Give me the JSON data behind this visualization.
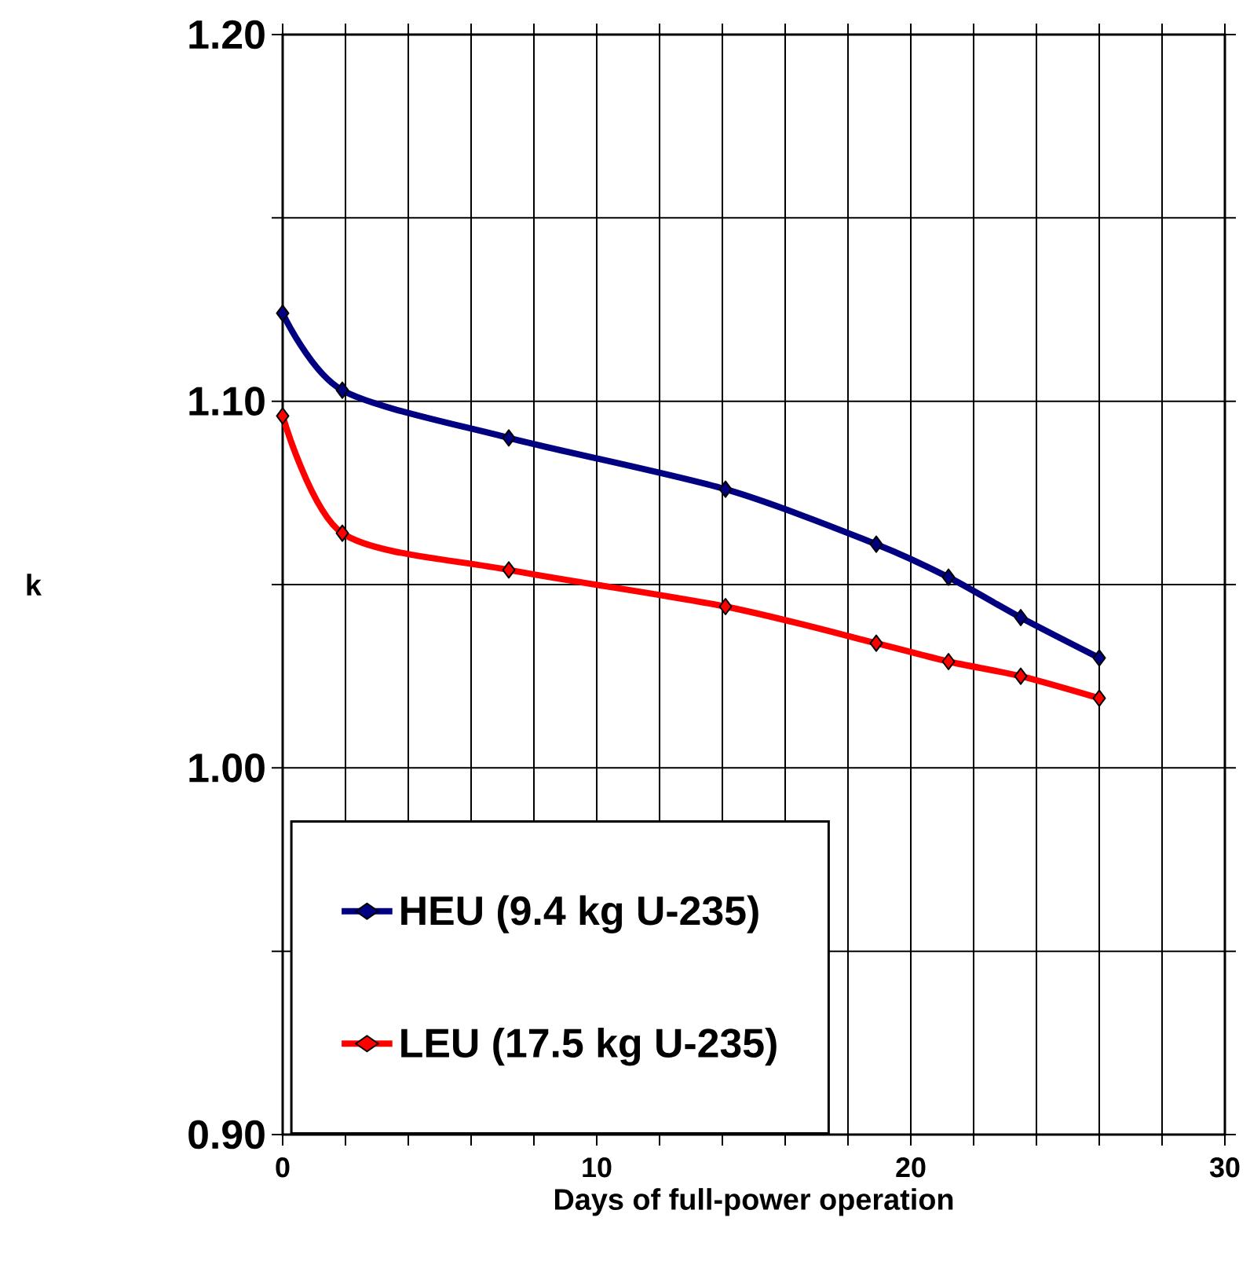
{
  "chart_data": {
    "type": "line",
    "xlabel": "Days of full-power operation",
    "ylabel": "k",
    "xlim": [
      0,
      30
    ],
    "ylim": [
      0.9,
      1.2
    ],
    "xticks": [
      0,
      {
        "value": 2,
        "label": null
      },
      {
        "value": 4,
        "label": null
      },
      {
        "value": 6,
        "label": null
      },
      {
        "value": 8,
        "label": null
      },
      10,
      {
        "value": 12,
        "label": null
      },
      {
        "value": 14,
        "label": null
      },
      {
        "value": 16,
        "label": null
      },
      {
        "value": 18,
        "label": null
      },
      20,
      {
        "value": 22,
        "label": null
      },
      {
        "value": 24,
        "label": null
      },
      {
        "value": 26,
        "label": null
      },
      {
        "value": 28,
        "label": null
      },
      30
    ],
    "yticks": [
      {
        "value": 0.9,
        "label": "0.90"
      },
      {
        "value": 0.95,
        "label": null
      },
      {
        "value": 1.0,
        "label": "1.00"
      },
      {
        "value": 1.05,
        "label": null
      },
      {
        "value": 1.1,
        "label": "1.10"
      },
      {
        "value": 1.15,
        "label": null
      },
      {
        "value": 1.2,
        "label": "1.20"
      }
    ],
    "grid": true,
    "legend": "bottom left",
    "marker": "diamond",
    "line_style": "solid",
    "series": [
      {
        "name": "HEU (9.4 kg U-235)",
        "color": "#000080",
        "x": [
          0,
          1.9,
          7.2,
          14.1,
          18.9,
          21.2,
          23.5,
          26
        ],
        "values": [
          1.124,
          1.103,
          1.09,
          1.076,
          1.061,
          1.052,
          1.041,
          1.03
        ]
      },
      {
        "name": "LEU (17.5 kg U-235)",
        "color": "#ff0000",
        "x": [
          0,
          1.9,
          7.2,
          14.1,
          18.9,
          21.2,
          23.5,
          26
        ],
        "values": [
          1.096,
          1.064,
          1.054,
          1.044,
          1.034,
          1.029,
          1.025,
          1.019
        ]
      }
    ]
  }
}
